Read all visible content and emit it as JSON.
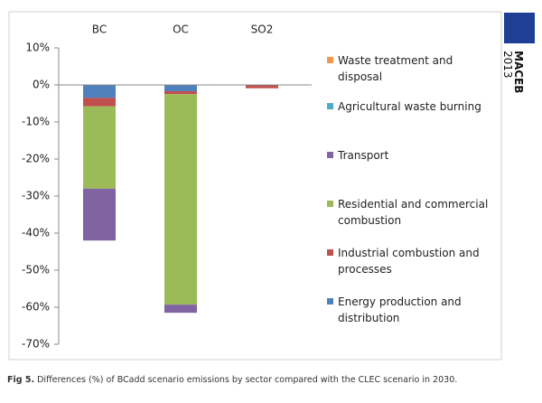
{
  "chart_data": {
    "type": "bar",
    "stacked": true,
    "categories": [
      "BC",
      "OC",
      "SO2"
    ],
    "series": [
      {
        "name": "Energy production and distribution",
        "color": "#4f81bd",
        "values": [
          -3.5,
          -1.7,
          -0.1
        ]
      },
      {
        "name": "Industrial combustion and processes",
        "color": "#c0504d",
        "values": [
          -2.3,
          -0.8,
          -0.8
        ]
      },
      {
        "name": "Residential and commercial combustion",
        "color": "#9bbb59",
        "values": [
          -22.2,
          -56.8,
          0
        ]
      },
      {
        "name": "Transport",
        "color": "#8064a2",
        "values": [
          -14,
          -2.2,
          0
        ]
      },
      {
        "name": "Agricultural waste burning",
        "color": "#4bacc6",
        "values": [
          0,
          0,
          0
        ]
      },
      {
        "name": "Waste treatment and disposal",
        "color": "#f79646",
        "values": [
          0,
          0,
          0
        ]
      }
    ],
    "ylim": [
      -70,
      10
    ],
    "yticks": [
      {
        "value": 10,
        "label": "10%"
      },
      {
        "value": 0,
        "label": "0%"
      },
      {
        "value": -10,
        "label": "-10%"
      },
      {
        "value": -20,
        "label": "-20%"
      },
      {
        "value": -30,
        "label": "-30%"
      },
      {
        "value": -40,
        "label": "-40%"
      },
      {
        "value": -50,
        "label": "-50%"
      },
      {
        "value": -60,
        "label": "-60%"
      },
      {
        "value": -70,
        "label": "-70%"
      }
    ],
    "legend": "right"
  },
  "caption": {
    "label": "Fig 5.",
    "text": "Differences (%) of BCadd scenario emissions by sector compared with the CLEC scenario in 2030."
  },
  "logo": {
    "title": "MACEB",
    "year": "2013"
  }
}
